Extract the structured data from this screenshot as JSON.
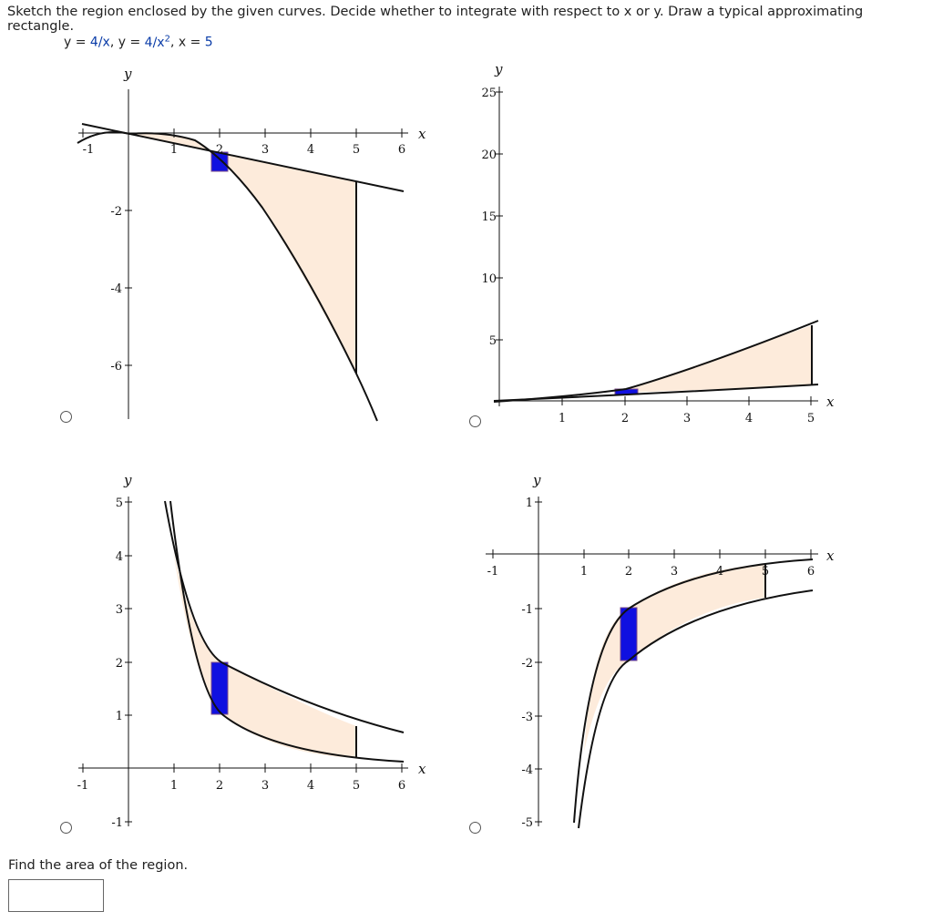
{
  "question": {
    "prompt": "Sketch the region enclosed by the given curves. Decide whether to integrate with respect to x or y. Draw a typical approximating rectangle.",
    "eq_y1": "y = ",
    "eq_f1": "4/x",
    "eq_sep1": ",  y = ",
    "eq_f2": "4/x",
    "eq_exp": "2",
    "eq_sep2": ",  x = ",
    "eq_f3": "5"
  },
  "colors": {
    "fill": "#fdebdb",
    "rect": "#1010e0",
    "curve": "#111111",
    "accent": "#0a3ca8"
  },
  "graphs": [
    {
      "id": "A",
      "x_axis_label": "x",
      "y_axis_label": "y",
      "x_ticks": [
        "-1",
        "1",
        "2",
        "3",
        "4",
        "5",
        "6"
      ],
      "y_ticks": [
        "-2",
        "-4",
        "-6"
      ]
    },
    {
      "id": "B",
      "x_axis_label": "x",
      "y_axis_label": "y",
      "x_ticks": [
        "1",
        "2",
        "3",
        "4",
        "5"
      ],
      "y_ticks": [
        "25",
        "20",
        "15",
        "10",
        "5"
      ]
    },
    {
      "id": "C",
      "x_axis_label": "x",
      "y_axis_label": "y",
      "x_ticks": [
        "-1",
        "1",
        "2",
        "3",
        "4",
        "5",
        "6"
      ],
      "y_ticks": [
        "5",
        "4",
        "3",
        "2",
        "1",
        "-1"
      ]
    },
    {
      "id": "D",
      "x_axis_label": "x",
      "y_axis_label": "y",
      "x_ticks": [
        "-1",
        "1",
        "2",
        "3",
        "4",
        "5",
        "6"
      ],
      "y_ticks": [
        "1",
        "-1",
        "-2",
        "-3",
        "-4",
        "-5"
      ]
    }
  ],
  "find_area": {
    "label": "Find the area of the region.",
    "value": ""
  }
}
